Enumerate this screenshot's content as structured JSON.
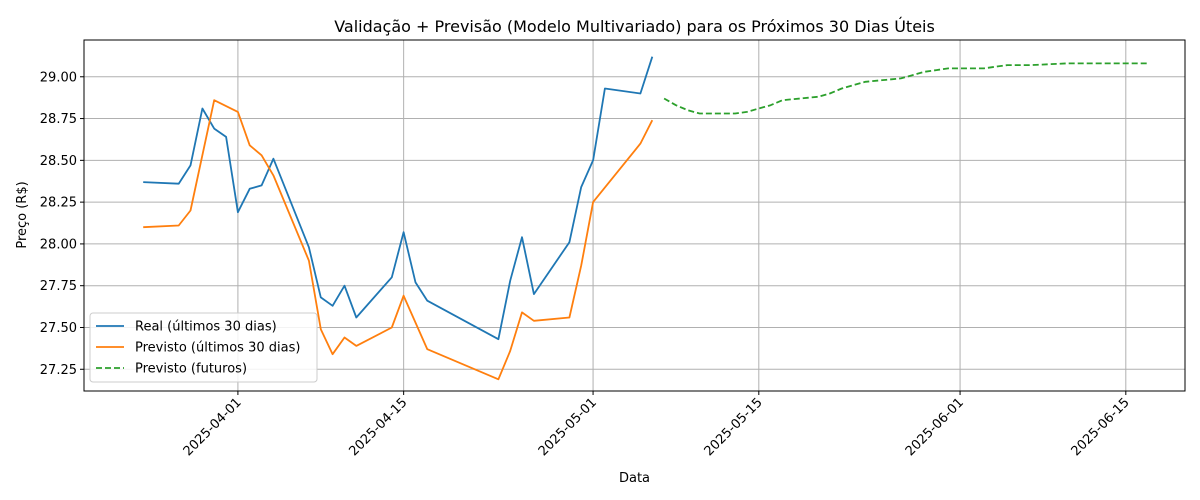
{
  "chart_data": {
    "type": "line",
    "title": "Validação + Previsão (Modelo Multivariado) para os Próximos 30 Dias Úteis",
    "xlabel": "Data",
    "ylabel": "Preço (R$)",
    "xlim": [
      "2025-03-19",
      "2025-06-20"
    ],
    "ylim": [
      27.12,
      29.22
    ],
    "x_ticks": [
      "2025-04-01",
      "2025-04-15",
      "2025-05-01",
      "2025-05-15",
      "2025-06-01",
      "2025-06-15"
    ],
    "y_ticks": [
      27.25,
      27.5,
      27.75,
      28.0,
      28.25,
      28.5,
      28.75,
      29.0
    ],
    "y_tick_labels": [
      "27.25",
      "27.50",
      "27.75",
      "28.00",
      "28.25",
      "28.50",
      "28.75",
      "29.00"
    ],
    "grid": true,
    "legend_position": "lower-left",
    "series": [
      {
        "name": "Real (últimos 30 dias)",
        "color": "#1f77b4",
        "style": "solid",
        "x": [
          "2025-03-24",
          "2025-03-27",
          "2025-03-28",
          "2025-03-29",
          "2025-03-30",
          "2025-03-31",
          "2025-04-01",
          "2025-04-02",
          "2025-04-03",
          "2025-04-04",
          "2025-04-07",
          "2025-04-08",
          "2025-04-09",
          "2025-04-10",
          "2025-04-11",
          "2025-04-14",
          "2025-04-15",
          "2025-04-16",
          "2025-04-17",
          "2025-04-23",
          "2025-04-24",
          "2025-04-25",
          "2025-04-26",
          "2025-04-29",
          "2025-04-30",
          "2025-05-01",
          "2025-05-02",
          "2025-05-05",
          "2025-05-06"
        ],
        "y": [
          28.37,
          28.36,
          28.47,
          28.81,
          28.69,
          28.64,
          28.19,
          28.33,
          28.35,
          28.51,
          27.98,
          27.68,
          27.63,
          27.75,
          27.56,
          27.8,
          28.07,
          27.77,
          27.66,
          27.43,
          27.78,
          28.04,
          27.7,
          28.01,
          28.34,
          28.5,
          28.93,
          28.9,
          29.12
        ]
      },
      {
        "name": "Previsto (últimos 30 dias)",
        "color": "#ff7f0e",
        "style": "solid",
        "x": [
          "2025-03-24",
          "2025-03-27",
          "2025-03-28",
          "2025-03-30",
          "2025-04-01",
          "2025-04-02",
          "2025-04-03",
          "2025-04-04",
          "2025-04-07",
          "2025-04-08",
          "2025-04-09",
          "2025-04-10",
          "2025-04-11",
          "2025-04-14",
          "2025-04-15",
          "2025-04-17",
          "2025-04-23",
          "2025-04-24",
          "2025-04-25",
          "2025-04-26",
          "2025-04-29",
          "2025-04-30",
          "2025-05-01",
          "2025-05-05",
          "2025-05-06"
        ],
        "y": [
          28.1,
          28.11,
          28.2,
          28.86,
          28.79,
          28.59,
          28.53,
          28.41,
          27.9,
          27.49,
          27.34,
          27.44,
          27.39,
          27.5,
          27.69,
          27.37,
          27.19,
          27.36,
          27.59,
          27.54,
          27.56,
          27.87,
          28.25,
          28.6,
          28.74
        ]
      },
      {
        "name": "Previsto (futuros)",
        "color": "#2ca02c",
        "style": "dashed",
        "x": [
          "2025-05-07",
          "2025-05-08",
          "2025-05-09",
          "2025-05-10",
          "2025-05-13",
          "2025-05-14",
          "2025-05-15",
          "2025-05-16",
          "2025-05-17",
          "2025-05-20",
          "2025-05-21",
          "2025-05-22",
          "2025-05-23",
          "2025-05-24",
          "2025-05-27",
          "2025-05-28",
          "2025-05-29",
          "2025-05-30",
          "2025-05-31",
          "2025-06-03",
          "2025-06-04",
          "2025-06-05",
          "2025-06-06",
          "2025-06-07",
          "2025-06-10",
          "2025-06-11",
          "2025-06-12",
          "2025-06-13",
          "2025-06-14",
          "2025-06-17"
        ],
        "y": [
          28.87,
          28.83,
          28.8,
          28.78,
          28.78,
          28.79,
          28.81,
          28.83,
          28.86,
          28.88,
          28.9,
          28.93,
          28.95,
          28.97,
          28.99,
          29.01,
          29.03,
          29.04,
          29.05,
          29.05,
          29.06,
          29.07,
          29.07,
          29.07,
          29.08,
          29.08,
          29.08,
          29.08,
          29.08,
          29.08
        ]
      }
    ]
  }
}
